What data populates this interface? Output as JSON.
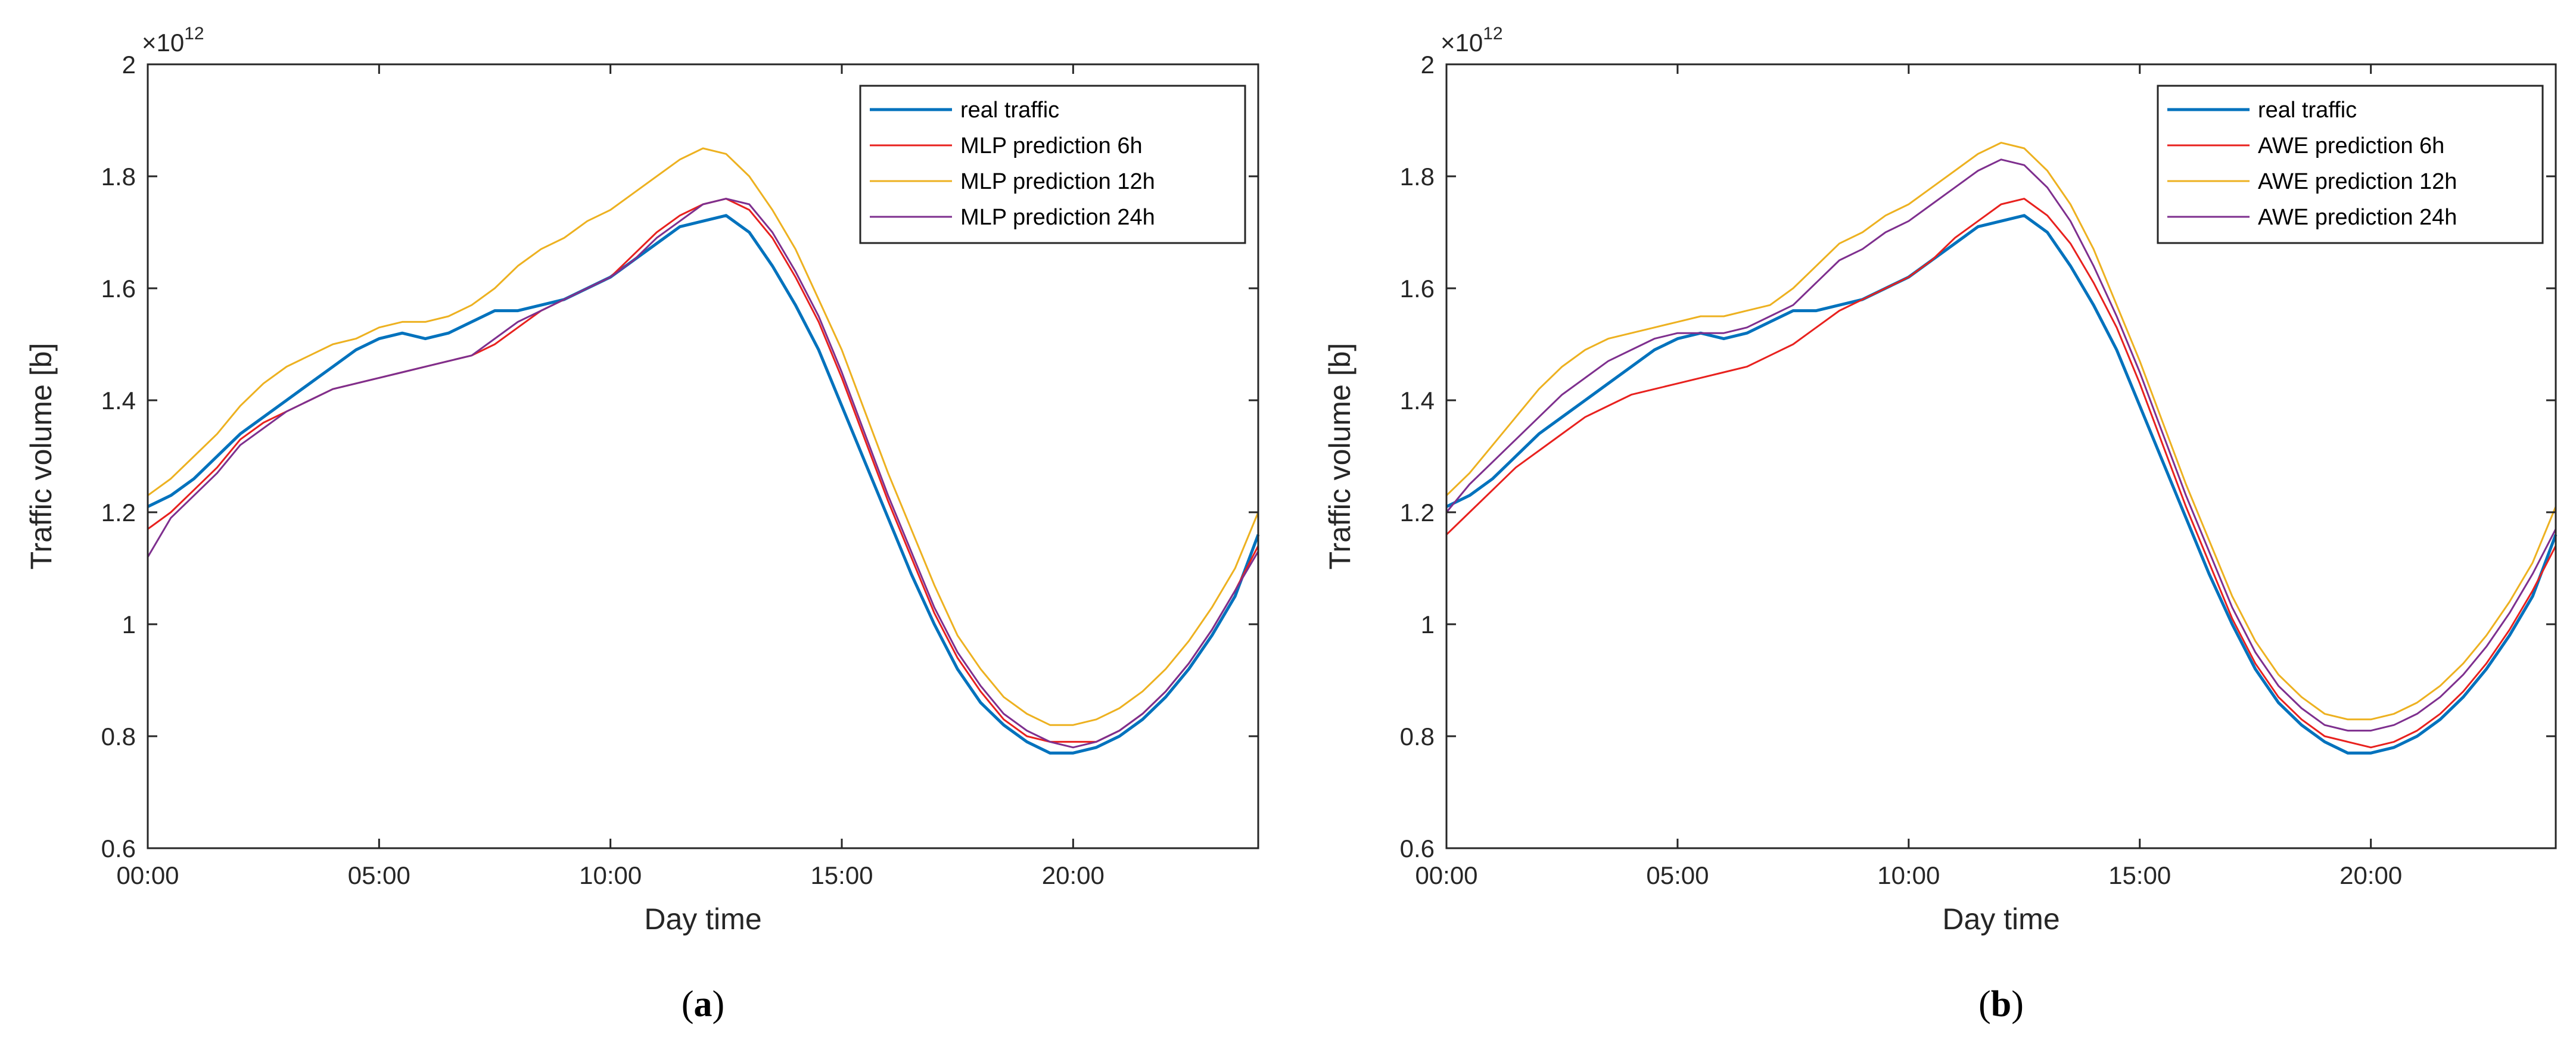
{
  "chart_data": [
    {
      "type": "line",
      "caption_letter": "a",
      "xlabel": "Day time",
      "ylabel": "Traffic volume [b]",
      "y_exponent_base": "×10",
      "y_exponent_power": "12",
      "xlim": [
        0,
        24
      ],
      "ylim": [
        0.6,
        2.0
      ],
      "x_ticks": [
        0,
        5,
        10,
        15,
        20
      ],
      "x_tick_labels": [
        "00:00",
        "05:00",
        "10:00",
        "15:00",
        "20:00"
      ],
      "y_ticks": [
        0.6,
        0.8,
        1.0,
        1.2,
        1.4,
        1.6,
        1.8,
        2.0
      ],
      "y_tick_labels": [
        "0.6",
        "0.8",
        "1",
        "1.2",
        "1.4",
        "1.6",
        "1.8",
        "2"
      ],
      "legend_position": "top-right",
      "series": [
        {
          "name": "real traffic",
          "color": "#0072BD",
          "width": 5,
          "x": [
            0,
            0.5,
            1,
            1.5,
            2,
            2.5,
            3,
            3.5,
            4,
            4.5,
            5,
            5.5,
            6,
            6.5,
            7,
            7.5,
            8,
            8.5,
            9,
            9.5,
            10,
            10.5,
            11,
            11.5,
            12,
            12.5,
            13,
            13.5,
            14,
            14.5,
            15,
            15.5,
            16,
            16.5,
            17,
            17.5,
            18,
            18.5,
            19,
            19.5,
            20,
            20.5,
            21,
            21.5,
            22,
            22.5,
            23,
            23.5,
            24
          ],
          "y": [
            1.21,
            1.23,
            1.26,
            1.3,
            1.34,
            1.37,
            1.4,
            1.43,
            1.46,
            1.49,
            1.51,
            1.52,
            1.51,
            1.52,
            1.54,
            1.56,
            1.56,
            1.57,
            1.58,
            1.6,
            1.62,
            1.65,
            1.68,
            1.71,
            1.72,
            1.73,
            1.7,
            1.64,
            1.57,
            1.49,
            1.39,
            1.29,
            1.19,
            1.09,
            1.0,
            0.92,
            0.86,
            0.82,
            0.79,
            0.77,
            0.77,
            0.78,
            0.8,
            0.83,
            0.87,
            0.92,
            0.98,
            1.05,
            1.16
          ]
        },
        {
          "name": "MLP prediction 6h",
          "color": "#E8211E",
          "width": 3,
          "x": [
            0,
            0.5,
            1,
            1.5,
            2,
            2.5,
            3,
            3.5,
            4,
            4.5,
            5,
            5.5,
            6,
            6.5,
            7,
            7.5,
            8,
            8.5,
            9,
            9.5,
            10,
            10.5,
            11,
            11.5,
            12,
            12.5,
            13,
            13.5,
            14,
            14.5,
            15,
            15.5,
            16,
            16.5,
            17,
            17.5,
            18,
            18.5,
            19,
            19.5,
            20,
            20.5,
            21,
            21.5,
            22,
            22.5,
            23,
            23.5,
            24
          ],
          "y": [
            1.17,
            1.2,
            1.24,
            1.28,
            1.33,
            1.36,
            1.38,
            1.4,
            1.42,
            1.43,
            1.44,
            1.45,
            1.46,
            1.47,
            1.48,
            1.5,
            1.53,
            1.56,
            1.58,
            1.6,
            1.62,
            1.66,
            1.7,
            1.73,
            1.75,
            1.76,
            1.74,
            1.69,
            1.62,
            1.54,
            1.44,
            1.33,
            1.22,
            1.12,
            1.02,
            0.94,
            0.88,
            0.83,
            0.8,
            0.79,
            0.79,
            0.79,
            0.81,
            0.84,
            0.88,
            0.93,
            0.99,
            1.06,
            1.14
          ]
        },
        {
          "name": "MLP prediction 12h",
          "color": "#EDB120",
          "width": 3,
          "x": [
            0,
            0.5,
            1,
            1.5,
            2,
            2.5,
            3,
            3.5,
            4,
            4.5,
            5,
            5.5,
            6,
            6.5,
            7,
            7.5,
            8,
            8.5,
            9,
            9.5,
            10,
            10.5,
            11,
            11.5,
            12,
            12.5,
            13,
            13.5,
            14,
            14.5,
            15,
            15.5,
            16,
            16.5,
            17,
            17.5,
            18,
            18.5,
            19,
            19.5,
            20,
            20.5,
            21,
            21.5,
            22,
            22.5,
            23,
            23.5,
            24
          ],
          "y": [
            1.23,
            1.26,
            1.3,
            1.34,
            1.39,
            1.43,
            1.46,
            1.48,
            1.5,
            1.51,
            1.53,
            1.54,
            1.54,
            1.55,
            1.57,
            1.6,
            1.64,
            1.67,
            1.69,
            1.72,
            1.74,
            1.77,
            1.8,
            1.83,
            1.85,
            1.84,
            1.8,
            1.74,
            1.67,
            1.58,
            1.49,
            1.38,
            1.27,
            1.17,
            1.07,
            0.98,
            0.92,
            0.87,
            0.84,
            0.82,
            0.82,
            0.83,
            0.85,
            0.88,
            0.92,
            0.97,
            1.03,
            1.1,
            1.2
          ]
        },
        {
          "name": "MLP prediction 24h",
          "color": "#7E2F8E",
          "width": 3,
          "x": [
            0,
            0.5,
            1,
            1.5,
            2,
            2.5,
            3,
            3.5,
            4,
            4.5,
            5,
            5.5,
            6,
            6.5,
            7,
            7.5,
            8,
            8.5,
            9,
            9.5,
            10,
            10.5,
            11,
            11.5,
            12,
            12.5,
            13,
            13.5,
            14,
            14.5,
            15,
            15.5,
            16,
            16.5,
            17,
            17.5,
            18,
            18.5,
            19,
            19.5,
            20,
            20.5,
            21,
            21.5,
            22,
            22.5,
            23,
            23.5,
            24
          ],
          "y": [
            1.12,
            1.19,
            1.23,
            1.27,
            1.32,
            1.35,
            1.38,
            1.4,
            1.42,
            1.43,
            1.44,
            1.45,
            1.46,
            1.47,
            1.48,
            1.51,
            1.54,
            1.56,
            1.58,
            1.6,
            1.62,
            1.65,
            1.69,
            1.72,
            1.75,
            1.76,
            1.75,
            1.7,
            1.63,
            1.55,
            1.45,
            1.34,
            1.23,
            1.13,
            1.03,
            0.95,
            0.89,
            0.84,
            0.81,
            0.79,
            0.78,
            0.79,
            0.81,
            0.84,
            0.88,
            0.93,
            0.99,
            1.06,
            1.13
          ]
        }
      ]
    },
    {
      "type": "line",
      "caption_letter": "b",
      "xlabel": "Day time",
      "ylabel": "Traffic volume [b]",
      "y_exponent_base": "×10",
      "y_exponent_power": "12",
      "xlim": [
        0,
        24
      ],
      "ylim": [
        0.6,
        2.0
      ],
      "x_ticks": [
        0,
        5,
        10,
        15,
        20
      ],
      "x_tick_labels": [
        "00:00",
        "05:00",
        "10:00",
        "15:00",
        "20:00"
      ],
      "y_ticks": [
        0.6,
        0.8,
        1.0,
        1.2,
        1.4,
        1.6,
        1.8,
        2.0
      ],
      "y_tick_labels": [
        "0.6",
        "0.8",
        "1",
        "1.2",
        "1.4",
        "1.6",
        "1.8",
        "2"
      ],
      "legend_position": "top-right",
      "series": [
        {
          "name": "real traffic",
          "color": "#0072BD",
          "width": 5,
          "x": [
            0,
            0.5,
            1,
            1.5,
            2,
            2.5,
            3,
            3.5,
            4,
            4.5,
            5,
            5.5,
            6,
            6.5,
            7,
            7.5,
            8,
            8.5,
            9,
            9.5,
            10,
            10.5,
            11,
            11.5,
            12,
            12.5,
            13,
            13.5,
            14,
            14.5,
            15,
            15.5,
            16,
            16.5,
            17,
            17.5,
            18,
            18.5,
            19,
            19.5,
            20,
            20.5,
            21,
            21.5,
            22,
            22.5,
            23,
            23.5,
            24
          ],
          "y": [
            1.21,
            1.23,
            1.26,
            1.3,
            1.34,
            1.37,
            1.4,
            1.43,
            1.46,
            1.49,
            1.51,
            1.52,
            1.51,
            1.52,
            1.54,
            1.56,
            1.56,
            1.57,
            1.58,
            1.6,
            1.62,
            1.65,
            1.68,
            1.71,
            1.72,
            1.73,
            1.7,
            1.64,
            1.57,
            1.49,
            1.39,
            1.29,
            1.19,
            1.09,
            1.0,
            0.92,
            0.86,
            0.82,
            0.79,
            0.77,
            0.77,
            0.78,
            0.8,
            0.83,
            0.87,
            0.92,
            0.98,
            1.05,
            1.16
          ]
        },
        {
          "name": "AWE prediction 6h",
          "color": "#E8211E",
          "width": 3,
          "x": [
            0,
            0.5,
            1,
            1.5,
            2,
            2.5,
            3,
            3.5,
            4,
            4.5,
            5,
            5.5,
            6,
            6.5,
            7,
            7.5,
            8,
            8.5,
            9,
            9.5,
            10,
            10.5,
            11,
            11.5,
            12,
            12.5,
            13,
            13.5,
            14,
            14.5,
            15,
            15.5,
            16,
            16.5,
            17,
            17.5,
            18,
            18.5,
            19,
            19.5,
            20,
            20.5,
            21,
            21.5,
            22,
            22.5,
            23,
            23.5,
            24
          ],
          "y": [
            1.16,
            1.2,
            1.24,
            1.28,
            1.31,
            1.34,
            1.37,
            1.39,
            1.41,
            1.42,
            1.43,
            1.44,
            1.45,
            1.46,
            1.48,
            1.5,
            1.53,
            1.56,
            1.58,
            1.6,
            1.62,
            1.65,
            1.69,
            1.72,
            1.75,
            1.76,
            1.73,
            1.68,
            1.61,
            1.53,
            1.43,
            1.32,
            1.21,
            1.11,
            1.01,
            0.93,
            0.87,
            0.83,
            0.8,
            0.79,
            0.78,
            0.79,
            0.81,
            0.84,
            0.88,
            0.93,
            0.99,
            1.06,
            1.14
          ]
        },
        {
          "name": "AWE prediction 12h",
          "color": "#EDB120",
          "width": 3,
          "x": [
            0,
            0.5,
            1,
            1.5,
            2,
            2.5,
            3,
            3.5,
            4,
            4.5,
            5,
            5.5,
            6,
            6.5,
            7,
            7.5,
            8,
            8.5,
            9,
            9.5,
            10,
            10.5,
            11,
            11.5,
            12,
            12.5,
            13,
            13.5,
            14,
            14.5,
            15,
            15.5,
            16,
            16.5,
            17,
            17.5,
            18,
            18.5,
            19,
            19.5,
            20,
            20.5,
            21,
            21.5,
            22,
            22.5,
            23,
            23.5,
            24
          ],
          "y": [
            1.23,
            1.27,
            1.32,
            1.37,
            1.42,
            1.46,
            1.49,
            1.51,
            1.52,
            1.53,
            1.54,
            1.55,
            1.55,
            1.56,
            1.57,
            1.6,
            1.64,
            1.68,
            1.7,
            1.73,
            1.75,
            1.78,
            1.81,
            1.84,
            1.86,
            1.85,
            1.81,
            1.75,
            1.67,
            1.57,
            1.47,
            1.36,
            1.25,
            1.15,
            1.05,
            0.97,
            0.91,
            0.87,
            0.84,
            0.83,
            0.83,
            0.84,
            0.86,
            0.89,
            0.93,
            0.98,
            1.04,
            1.11,
            1.21
          ]
        },
        {
          "name": "AWE prediction 24h",
          "color": "#7E2F8E",
          "width": 3,
          "x": [
            0,
            0.5,
            1,
            1.5,
            2,
            2.5,
            3,
            3.5,
            4,
            4.5,
            5,
            5.5,
            6,
            6.5,
            7,
            7.5,
            8,
            8.5,
            9,
            9.5,
            10,
            10.5,
            11,
            11.5,
            12,
            12.5,
            13,
            13.5,
            14,
            14.5,
            15,
            15.5,
            16,
            16.5,
            17,
            17.5,
            18,
            18.5,
            19,
            19.5,
            20,
            20.5,
            21,
            21.5,
            22,
            22.5,
            23,
            23.5,
            24
          ],
          "y": [
            1.2,
            1.25,
            1.29,
            1.33,
            1.37,
            1.41,
            1.44,
            1.47,
            1.49,
            1.51,
            1.52,
            1.52,
            1.52,
            1.53,
            1.55,
            1.57,
            1.61,
            1.65,
            1.67,
            1.7,
            1.72,
            1.75,
            1.78,
            1.81,
            1.83,
            1.82,
            1.78,
            1.72,
            1.64,
            1.55,
            1.45,
            1.34,
            1.23,
            1.13,
            1.03,
            0.95,
            0.89,
            0.85,
            0.82,
            0.81,
            0.81,
            0.82,
            0.84,
            0.87,
            0.91,
            0.96,
            1.02,
            1.09,
            1.17
          ]
        }
      ]
    }
  ]
}
